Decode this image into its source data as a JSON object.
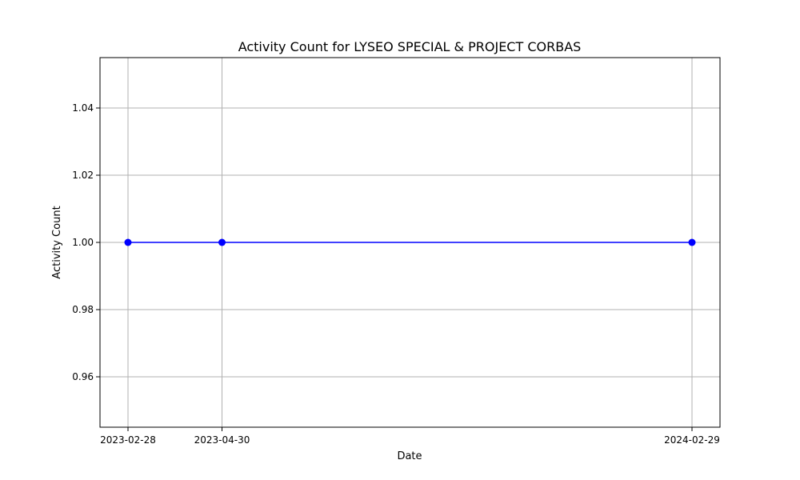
{
  "chart_data": {
    "type": "line",
    "title": "Activity Count for LYSEO SPECIAL & PROJECT CORBAS",
    "xlabel": "Date",
    "ylabel": "Activity Count",
    "x": [
      "2023-02-28",
      "2023-04-30",
      "2024-02-29"
    ],
    "series": [
      {
        "values": [
          1,
          1,
          1
        ],
        "color": "#0000ff",
        "marker": "circle"
      }
    ],
    "x_ticks": [
      "2023-02-28",
      "2023-04-30",
      "2024-02-29"
    ],
    "y_ticks": [
      0.96,
      0.98,
      1.0,
      1.02,
      1.04
    ],
    "y_tick_labels": [
      "0.96",
      "0.98",
      "1.00",
      "1.02",
      "1.04"
    ],
    "ylim": [
      0.945,
      1.055
    ],
    "grid": true
  }
}
